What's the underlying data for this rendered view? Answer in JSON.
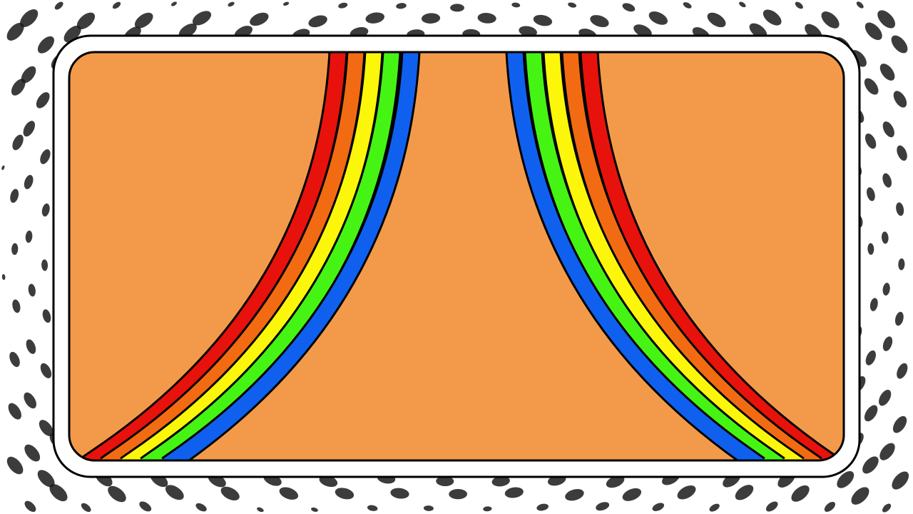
{
  "scene": {
    "background_color": "#ffffff",
    "dot_color": "#1a1a1a",
    "frame_color": "#ffffff",
    "outline_color": "#000000",
    "panel_color": "#f39a4a",
    "stripe_colors": [
      "#e8120c",
      "#f26b12",
      "#fcf70a",
      "#46f414",
      "#1060f0"
    ],
    "stripe_names": [
      "red",
      "orange",
      "yellow",
      "green",
      "blue"
    ]
  }
}
